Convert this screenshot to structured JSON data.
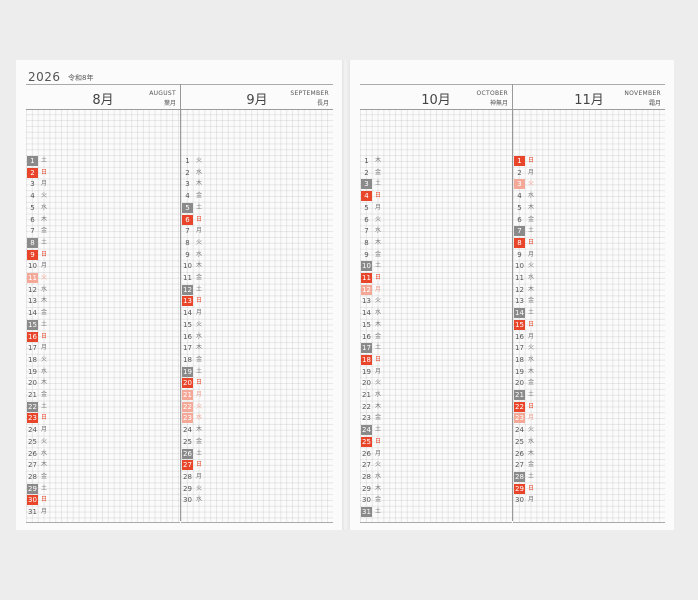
{
  "colors": {
    "saturday": "#8a8a8a",
    "sunday": "#e8452a",
    "holiday": "#f4a898"
  },
  "year": "2026",
  "era": "令和8年",
  "months": [
    {
      "num": "8月",
      "eng": "AUGUST",
      "jp": "葉月",
      "days": [
        "1 土 sat",
        "2 日 sun",
        "3 月",
        "4 火",
        "5 水",
        "6 木",
        "7 金",
        "8 土 sat",
        "9 日 sun",
        "10 月",
        "11 火 hol",
        "12 水",
        "13 木",
        "14 金",
        "15 土 sat",
        "16 日 sun",
        "17 月",
        "18 火",
        "19 水",
        "20 木",
        "21 金",
        "22 土 sat",
        "23 日 sun",
        "24 月",
        "25 火",
        "26 水",
        "27 木",
        "28 金",
        "29 土 sat",
        "30 日 sun",
        "31 月"
      ]
    },
    {
      "num": "9月",
      "eng": "SEPTEMBER",
      "jp": "長月",
      "days": [
        "1 火",
        "2 水",
        "3 木",
        "4 金",
        "5 土 sat",
        "6 日 sun",
        "7 月",
        "8 火",
        "9 水",
        "10 木",
        "11 金",
        "12 土 sat",
        "13 日 sun",
        "14 月",
        "15 火",
        "16 水",
        "17 木",
        "18 金",
        "19 土 sat",
        "20 日 sun",
        "21 月 hol",
        "22 火 hol",
        "23 水 hol",
        "24 木",
        "25 金",
        "26 土 sat",
        "27 日 sun",
        "28 月",
        "29 火",
        "30 水"
      ]
    },
    {
      "num": "10月",
      "eng": "OCTOBER",
      "jp": "神無月",
      "days": [
        "1 木",
        "2 金",
        "3 土 sat",
        "4 日 sun",
        "5 月",
        "6 火",
        "7 水",
        "8 木",
        "9 金",
        "10 土 sat",
        "11 日 sun",
        "12 月 hol",
        "13 火",
        "14 水",
        "15 木",
        "16 金",
        "17 土 sat",
        "18 日 sun",
        "19 月",
        "20 火",
        "21 水",
        "22 木",
        "23 金",
        "24 土 sat",
        "25 日 sun",
        "26 月",
        "27 火",
        "28 水",
        "29 木",
        "30 金",
        "31 土 sat"
      ]
    },
    {
      "num": "11月",
      "eng": "NOVEMBER",
      "jp": "霜月",
      "days": [
        "1 日 sun",
        "2 月",
        "3 火 hol",
        "4 水",
        "5 木",
        "6 金",
        "7 土 sat",
        "8 日 sun",
        "9 月",
        "10 火",
        "11 水",
        "12 木",
        "13 金",
        "14 土 sat",
        "15 日 sun",
        "16 月",
        "17 火",
        "18 水",
        "19 木",
        "20 金",
        "21 土 sat",
        "22 日 sun",
        "23 月 hol",
        "24 火",
        "25 水",
        "26 木",
        "27 金",
        "28 土 sat",
        "29 日 sun",
        "30 月"
      ]
    }
  ]
}
